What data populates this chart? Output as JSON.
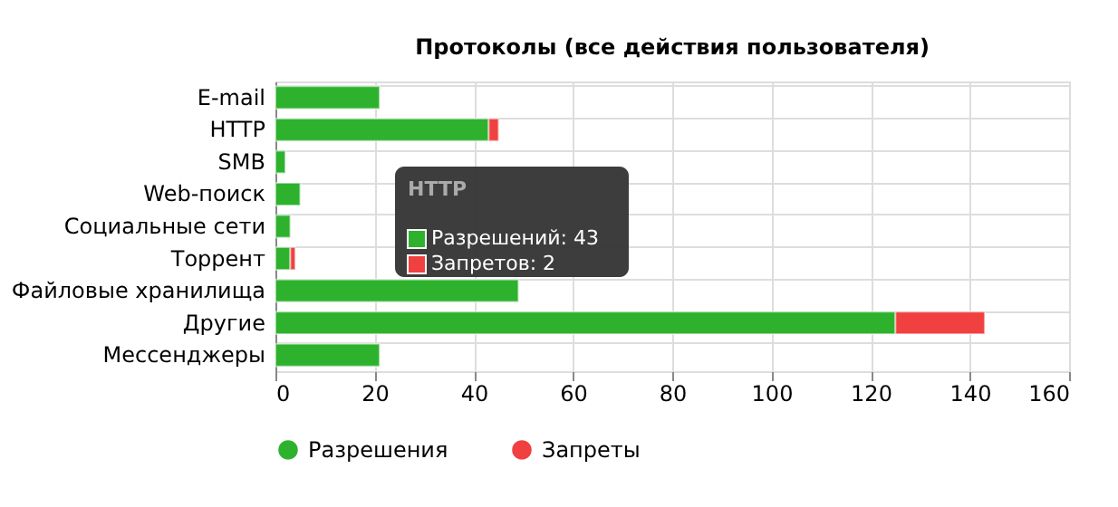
{
  "chart_data": {
    "type": "bar",
    "title": "Протоколы (все действия пользователя)",
    "orientation": "horizontal",
    "stacked": true,
    "categories": [
      "E-mail",
      "HTTP",
      "SMB",
      "Web-поиск",
      "Социальные сети",
      "Торрент",
      "Файловые хранилища",
      "Другие",
      "Мессенджеры"
    ],
    "series": [
      {
        "name": "Разрешения",
        "color": "#2eb22e",
        "values": [
          21,
          43,
          2,
          5,
          3,
          3,
          49,
          125,
          21
        ]
      },
      {
        "name": "Запреты",
        "color": "#f04040",
        "values": [
          0,
          2,
          0,
          0,
          0,
          1,
          0,
          18,
          0
        ]
      }
    ],
    "xlim": [
      0,
      160
    ],
    "xticks": [
      0,
      20,
      40,
      60,
      80,
      100,
      120,
      140,
      160
    ],
    "grid": true,
    "legend": "bottom",
    "annotations": [
      "HTTP",
      "Разрешений: 43",
      "Запретов: 2"
    ]
  }
}
